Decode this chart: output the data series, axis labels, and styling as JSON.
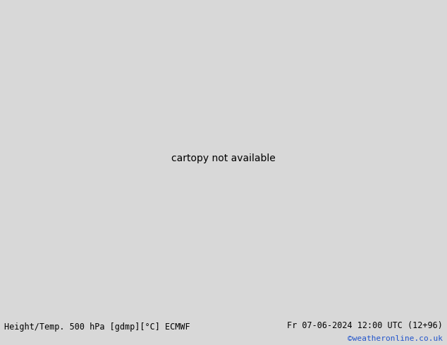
{
  "title_left": "Height/Temp. 500 hPa [gdmp][°C] ECMWF",
  "title_right": "Fr 07-06-2024 12:00 UTC (12+96)",
  "watermark": "©weatheronline.co.uk",
  "bg_land_color": "#c8dfa0",
  "bg_sea_color": "#d8d8d8",
  "land_fill_color": "#c8dfa0",
  "gray_coast_color": "#aaaaaa",
  "contour_black_color": "#000000",
  "contour_cyan_color": "#00b8cc",
  "temp_orange_color": "#ff8800",
  "temp_red_color": "#dd1100",
  "temp_green_color": "#88cc00",
  "footnote_color": "#2255cc",
  "title_color": "#000000",
  "bottom_bar_color": "#bbbbbb",
  "fig_width": 6.34,
  "fig_height": 4.9,
  "dpi": 100,
  "lon_min": -45,
  "lon_max": 50,
  "lat_min": 30,
  "lat_max": 75
}
